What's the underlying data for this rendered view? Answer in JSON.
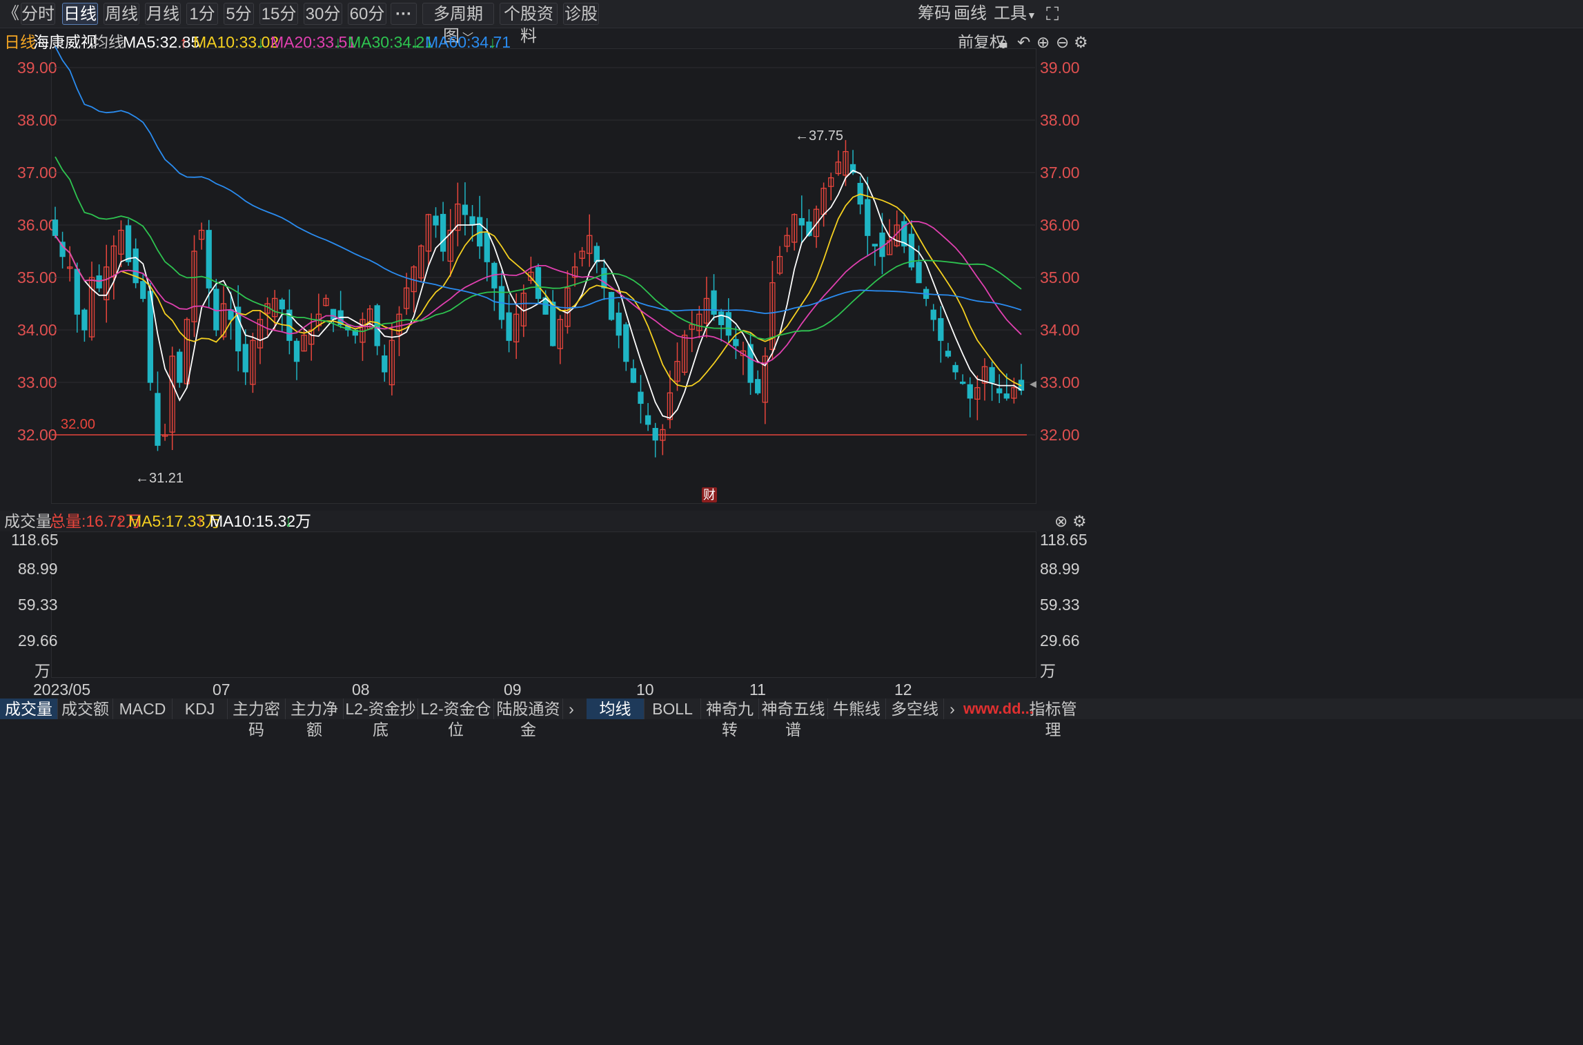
{
  "topbar": {
    "back_glyph": "《",
    "periods": [
      "分时",
      "日线",
      "周线",
      "月线",
      "1分",
      "5分",
      "15分",
      "30分",
      "60分"
    ],
    "active_period": "日线",
    "more_label": "···",
    "multi_period": "多周期图",
    "stock_profile": "个股资料",
    "diagnose": "诊股",
    "chips": "筹码",
    "draw": "画线",
    "tools": "工具"
  },
  "legend": {
    "period": "日线",
    "stock_name": "海康威视",
    "indicator": "均线",
    "ma5": "MA5:32.85",
    "ma10": "MA10:33.02",
    "ma20": "MA20:33.51",
    "ma30": "MA30:34.21",
    "ma60": "MA60:34.71",
    "adjust": "前复权"
  },
  "volume_legend": {
    "title": "成交量",
    "total": "总量:16.72万",
    "ma5": "MA5:17.33万",
    "ma10": "MA10:15.32万"
  },
  "price_axis": [
    "39.00",
    "38.00",
    "37.00",
    "36.00",
    "35.00",
    "34.00",
    "33.00",
    "32.00"
  ],
  "volume_axis": [
    "118.65",
    "88.99",
    "59.33",
    "29.66",
    "万"
  ],
  "x_axis": [
    "2023/05",
    "07",
    "08",
    "09",
    "10",
    "11",
    "12"
  ],
  "annotations": {
    "high": "←37.75",
    "low": "←31.21",
    "hline": "32.00",
    "fin_badge": "财"
  },
  "bottom_tabs_left": [
    "成交量",
    "成交额",
    "MACD",
    "KDJ",
    "主力密码",
    "主力净额",
    "L2-资金抄底",
    "L2-资金仓位",
    "陆股通资金"
  ],
  "bottom_tabs_right": [
    "均线",
    "BOLL",
    "神奇九转",
    "神奇五线谱",
    "牛熊线",
    "多空线",
    "指标管理"
  ],
  "watermark": "www.dd...",
  "colors": {
    "up": "#e8453c",
    "down": "#1fb5c4",
    "ma5": "#ffffff",
    "ma10": "#f5d020",
    "ma20": "#e040b0",
    "ma30": "#2ec450",
    "ma60": "#2a8cf0",
    "accent": "#e05050"
  },
  "chart_data": {
    "type": "candlestick",
    "title": "海康威视 日线",
    "ylim": [
      31.0,
      39.4
    ],
    "hline": 32.0,
    "high_label": 37.75,
    "low_label": 31.21,
    "closes": [
      35.8,
      35.4,
      35.2,
      34.3,
      34.0,
      35.0,
      34.8,
      35.2,
      35.6,
      35.9,
      35.3,
      34.9,
      34.6,
      33.0,
      31.8,
      32.0,
      33.5,
      33.0,
      34.2,
      35.5,
      35.9,
      34.8,
      34.0,
      34.5,
      34.2,
      33.6,
      33.2,
      33.8,
      34.2,
      34.5,
      34.6,
      34.4,
      33.8,
      33.4,
      33.9,
      34.0,
      34.3,
      34.6,
      34.2,
      34.1,
      34.0,
      33.9,
      34.2,
      34.4,
      33.7,
      33.2,
      33.8,
      34.3,
      34.8,
      35.2,
      35.6,
      36.2,
      36.0,
      35.5,
      35.9,
      36.4,
      36.2,
      36.0,
      35.6,
      35.3,
      34.8,
      34.2,
      33.8,
      34.3,
      34.7,
      35.1,
      34.6,
      34.3,
      33.7,
      34.2,
      34.8,
      35.2,
      35.5,
      35.8,
      35.3,
      34.8,
      34.2,
      33.9,
      33.4,
      33.0,
      32.6,
      32.2,
      31.9,
      32.1,
      32.8,
      33.4,
      33.9,
      34.1,
      34.3,
      34.6,
      34.3,
      34.1,
      33.9,
      33.7,
      33.6,
      33.0,
      32.8,
      33.5,
      34.9,
      35.4,
      35.8,
      36.2,
      36.0,
      35.8,
      36.3,
      36.7,
      36.9,
      37.2,
      37.4,
      37.0,
      36.4,
      35.8,
      35.6,
      35.4,
      35.7,
      36.0,
      35.6,
      35.2,
      34.9,
      34.6,
      34.2,
      33.8,
      33.5,
      33.2,
      33.0,
      32.7,
      32.9,
      33.3,
      33.0,
      32.8,
      32.7,
      32.9,
      32.85
    ]
  }
}
